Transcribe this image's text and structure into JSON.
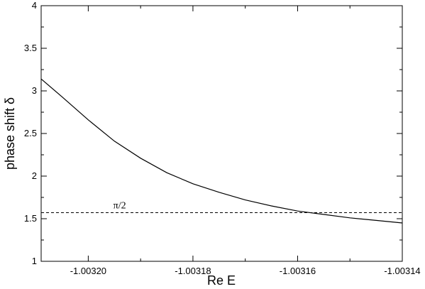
{
  "chart_data": {
    "type": "line",
    "title": "",
    "xlabel": "Re E",
    "ylabel": "phase shift δ",
    "xlim": [
      -1.003209,
      -1.00314
    ],
    "ylim": [
      1,
      4
    ],
    "xticks": [
      {
        "value": -1.0032,
        "label": "-1.00320"
      },
      {
        "value": -1.00318,
        "label": "-1.00318"
      },
      {
        "value": -1.00316,
        "label": "-1.00316"
      },
      {
        "value": -1.00314,
        "label": "-1.00314"
      }
    ],
    "yticks": [
      {
        "value": 1,
        "label": "1"
      },
      {
        "value": 1.5,
        "label": "1.5"
      },
      {
        "value": 2,
        "label": "2"
      },
      {
        "value": 2.5,
        "label": "2.5"
      },
      {
        "value": 3,
        "label": "3"
      },
      {
        "value": 3.5,
        "label": "3.5"
      },
      {
        "value": 4,
        "label": "4"
      }
    ],
    "grid": false,
    "series": [
      {
        "style": "solid",
        "color": "#000000",
        "x": [
          -1.003209,
          -1.003205,
          -1.0032,
          -1.003195,
          -1.00319,
          -1.003185,
          -1.00318,
          -1.003175,
          -1.00317,
          -1.003165,
          -1.00316,
          -1.003155,
          -1.00315,
          -1.003145,
          -1.00314
        ],
        "y": [
          3.14,
          2.93,
          2.66,
          2.41,
          2.21,
          2.04,
          1.91,
          1.81,
          1.72,
          1.65,
          1.59,
          1.55,
          1.51,
          1.48,
          1.45
        ]
      }
    ],
    "reference_lines": [
      {
        "orientation": "horizontal",
        "value": 1.5708,
        "style": "dashed",
        "label": "π/2"
      }
    ]
  }
}
